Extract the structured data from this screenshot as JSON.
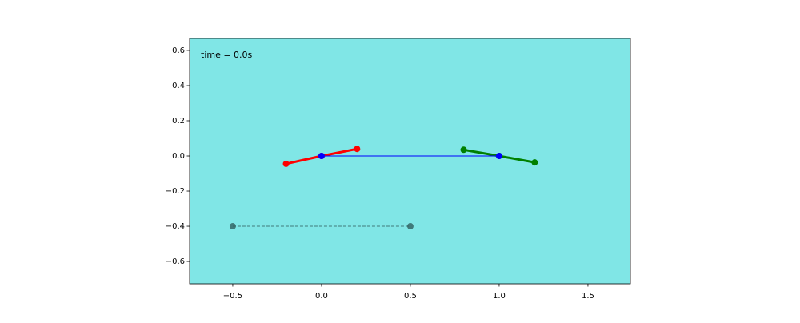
{
  "chart_data": {
    "type": "line",
    "annotation": "time = 0.0s",
    "background": "#80e6e6",
    "xlim": [
      -0.743,
      1.739
    ],
    "ylim": [
      -0.727,
      0.668
    ],
    "xticks": [
      {
        "value": -0.5,
        "label": "−0.5"
      },
      {
        "value": 0,
        "label": "0.0"
      },
      0.5,
      {
        "value": 1,
        "label": "1.0"
      },
      1.5
    ],
    "yticks": [
      {
        "value": -0.6,
        "label": "−0.6"
      },
      {
        "value": -0.4,
        "label": "−0.4"
      },
      {
        "value": -0.2,
        "label": "−0.2"
      },
      {
        "value": 0,
        "label": "0.0"
      },
      0.2,
      0.4,
      0.6
    ],
    "series": [
      {
        "color": "#2f5f5f",
        "linestyle": "dashed",
        "linewidth": 1,
        "x": [
          -0.5,
          0.5
        ],
        "values": [
          -0.4,
          -0.4
        ]
      },
      {
        "color": "#ff0000",
        "linestyle": "solid",
        "linewidth": 3,
        "x": [
          -0.2,
          0,
          0.2
        ],
        "values": [
          -0.045,
          0,
          0.04
        ]
      },
      {
        "color": "#008000",
        "linestyle": "solid",
        "linewidth": 3,
        "x": [
          0.8,
          1,
          1.2
        ],
        "values": [
          0.035,
          0,
          -0.037
        ]
      },
      {
        "color": "#0000ff",
        "linestyle": "solid",
        "linewidth": 1,
        "x": [
          0,
          1
        ],
        "values": [
          0,
          0
        ]
      }
    ]
  }
}
